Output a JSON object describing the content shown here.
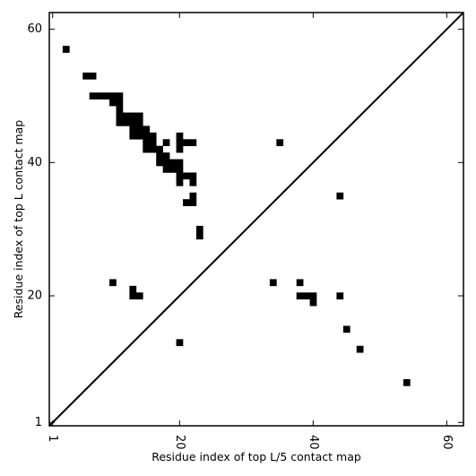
{
  "chart_data": {
    "type": "heatmap",
    "title": "",
    "xlabel": "Residue index of top L/5 contact map",
    "ylabel": "Residue index of top L contact map",
    "xlim": [
      0.5,
      62.5
    ],
    "ylim": [
      0.5,
      62.5
    ],
    "xticks": [
      1,
      20,
      40,
      60
    ],
    "yticks": [
      1,
      20,
      40,
      60
    ],
    "xtick_rotation": -90,
    "diagonal": true,
    "upper_left_cells": [
      [
        3,
        57
      ],
      [
        6,
        53
      ],
      [
        7,
        53
      ],
      [
        7,
        50
      ],
      [
        8,
        50
      ],
      [
        9,
        50
      ],
      [
        10,
        50
      ],
      [
        11,
        50
      ],
      [
        10,
        49
      ],
      [
        11,
        49
      ],
      [
        11,
        48
      ],
      [
        11,
        47
      ],
      [
        12,
        47
      ],
      [
        13,
        47
      ],
      [
        14,
        47
      ],
      [
        11,
        46
      ],
      [
        12,
        46
      ],
      [
        13,
        46
      ],
      [
        14,
        46
      ],
      [
        13,
        45
      ],
      [
        14,
        45
      ],
      [
        15,
        45
      ],
      [
        13,
        44
      ],
      [
        14,
        44
      ],
      [
        15,
        44
      ],
      [
        16,
        44
      ],
      [
        20,
        44
      ],
      [
        15,
        43
      ],
      [
        16,
        43
      ],
      [
        18,
        43
      ],
      [
        20,
        43
      ],
      [
        21,
        43
      ],
      [
        22,
        43
      ],
      [
        15,
        42
      ],
      [
        16,
        42
      ],
      [
        17,
        42
      ],
      [
        20,
        42
      ],
      [
        17,
        41
      ],
      [
        18,
        41
      ],
      [
        17,
        40
      ],
      [
        18,
        40
      ],
      [
        19,
        40
      ],
      [
        20,
        40
      ],
      [
        18,
        39
      ],
      [
        19,
        39
      ],
      [
        20,
        39
      ],
      [
        20,
        38
      ],
      [
        21,
        38
      ],
      [
        22,
        38
      ],
      [
        20,
        37
      ],
      [
        22,
        37
      ],
      [
        22,
        35
      ],
      [
        21,
        34
      ],
      [
        22,
        34
      ],
      [
        23,
        30
      ],
      [
        23,
        29
      ]
    ],
    "lower_right_cells": [
      [
        35,
        43
      ],
      [
        44,
        35
      ],
      [
        10,
        22
      ],
      [
        34,
        22
      ],
      [
        38,
        22
      ],
      [
        13,
        21
      ],
      [
        13,
        20
      ],
      [
        14,
        20
      ],
      [
        38,
        20
      ],
      [
        39,
        20
      ],
      [
        40,
        20
      ],
      [
        44,
        20
      ],
      [
        40,
        19
      ],
      [
        45,
        15
      ],
      [
        20,
        13
      ],
      [
        47,
        12
      ],
      [
        54,
        7
      ]
    ]
  }
}
